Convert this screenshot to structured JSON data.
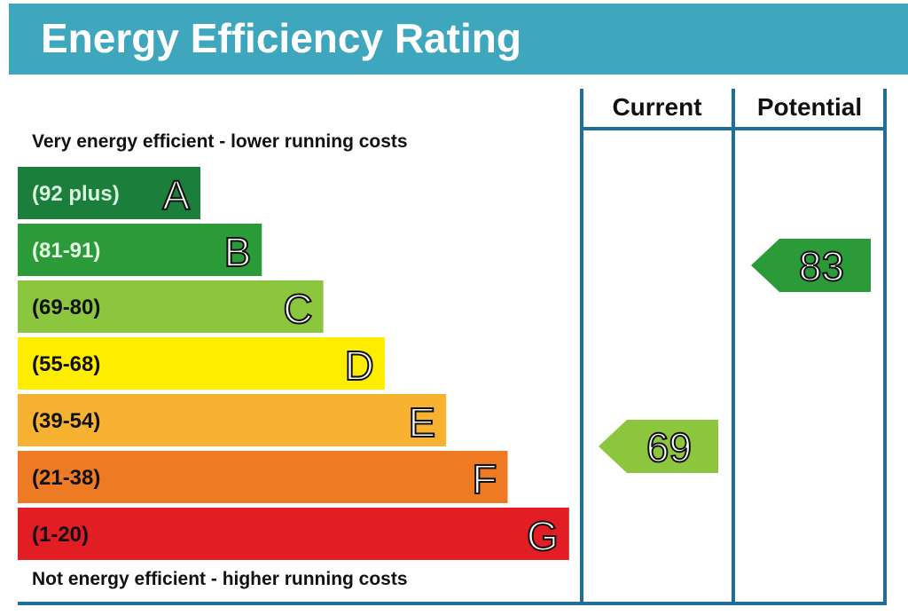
{
  "title": "Energy Efficiency Rating",
  "colors": {
    "header": "#3ea7bd",
    "frame": "#1f6f9a"
  },
  "chart_data": {
    "type": "bar",
    "title": "Energy Efficiency Rating",
    "top_caption": "Very energy efficient - lower running costs",
    "bottom_caption": "Not energy efficient - higher running costs",
    "columns": [
      "Current",
      "Potential"
    ],
    "bands": [
      {
        "letter": "A",
        "range": "(92 plus)",
        "color": "#1b7f3b",
        "text_color": "#d9f5e0"
      },
      {
        "letter": "B",
        "range": "(81-91)",
        "color": "#2b9b3a",
        "text_color": "#e4f7e4"
      },
      {
        "letter": "C",
        "range": "(69-80)",
        "color": "#8cc63f",
        "text_color": "#111111"
      },
      {
        "letter": "D",
        "range": "(55-68)",
        "color": "#ffed00",
        "text_color": "#111111"
      },
      {
        "letter": "E",
        "range": "(39-54)",
        "color": "#f7b231",
        "text_color": "#111111"
      },
      {
        "letter": "F",
        "range": "(21-38)",
        "color": "#ee7b24",
        "text_color": "#111111"
      },
      {
        "letter": "G",
        "range": "(1-20)",
        "color": "#e21d24",
        "text_color": "#111111"
      }
    ],
    "ratings": [
      {
        "column": "Current",
        "value": 69,
        "band": "C",
        "color": "#8cc63f"
      },
      {
        "column": "Potential",
        "value": 83,
        "band": "B",
        "color": "#2b9b3a"
      }
    ]
  }
}
